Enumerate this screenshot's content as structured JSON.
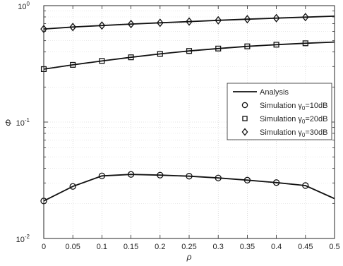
{
  "chart_data": {
    "type": "line",
    "title": "",
    "xlabel": "ρ",
    "ylabel": "Φ",
    "xlim": [
      0,
      0.5
    ],
    "ylim": [
      0.01,
      1
    ],
    "yscale": "log",
    "grid": true,
    "x_ticks": [
      "0",
      "0.05",
      "0.1",
      "0.15",
      "0.2",
      "0.25",
      "0.3",
      "0.35",
      "0.4",
      "0.45",
      "0.5"
    ],
    "y_ticks": [
      {
        "base": "10",
        "exp": "-2"
      },
      {
        "base": "10",
        "exp": "-1"
      },
      {
        "base": "10",
        "exp": "0"
      }
    ],
    "legend": {
      "position": "center-right",
      "entries": [
        {
          "label": "Analysis",
          "marker": "line"
        },
        {
          "label": {
            "prefix": "Simulation ",
            "sym": "γ",
            "sub": "0",
            "suffix": "=10dB"
          },
          "marker": "circle"
        },
        {
          "label": {
            "prefix": "Simulation ",
            "sym": "γ",
            "sub": "0",
            "suffix": "=20dB"
          },
          "marker": "square"
        },
        {
          "label": {
            "prefix": "Simulation ",
            "sym": "γ",
            "sub": "0",
            "suffix": "=30dB"
          },
          "marker": "diamond"
        }
      ]
    },
    "series": [
      {
        "marker": "circle",
        "x": [
          0,
          0.05,
          0.1,
          0.15,
          0.2,
          0.25,
          0.3,
          0.35,
          0.4,
          0.45,
          0.5
        ],
        "analysis": [
          0.021,
          0.028,
          0.0345,
          0.0355,
          0.035,
          0.0343,
          0.0331,
          0.0317,
          0.0302,
          0.0285,
          0.022
        ],
        "simulation_x": [
          0,
          0.05,
          0.1,
          0.15,
          0.2,
          0.25,
          0.3,
          0.35,
          0.4,
          0.45
        ],
        "simulation": [
          0.021,
          0.028,
          0.0345,
          0.0355,
          0.035,
          0.0343,
          0.0331,
          0.0317,
          0.0302,
          0.0285
        ]
      },
      {
        "marker": "square",
        "x": [
          0,
          0.05,
          0.1,
          0.15,
          0.2,
          0.25,
          0.3,
          0.35,
          0.4,
          0.45,
          0.5
        ],
        "analysis": [
          0.285,
          0.31,
          0.335,
          0.36,
          0.385,
          0.408,
          0.428,
          0.447,
          0.462,
          0.475,
          0.487
        ],
        "simulation_x": [
          0,
          0.05,
          0.1,
          0.15,
          0.2,
          0.25,
          0.3,
          0.35,
          0.4,
          0.45
        ],
        "simulation": [
          0.285,
          0.31,
          0.335,
          0.36,
          0.385,
          0.408,
          0.428,
          0.447,
          0.462,
          0.475
        ]
      },
      {
        "marker": "diamond",
        "x": [
          0,
          0.05,
          0.1,
          0.15,
          0.2,
          0.25,
          0.3,
          0.35,
          0.4,
          0.45,
          0.5
        ],
        "analysis": [
          0.63,
          0.655,
          0.675,
          0.695,
          0.712,
          0.73,
          0.748,
          0.765,
          0.781,
          0.797,
          0.812
        ],
        "simulation_x": [
          0,
          0.05,
          0.1,
          0.15,
          0.2,
          0.25,
          0.3,
          0.35,
          0.4,
          0.45
        ],
        "simulation": [
          0.63,
          0.655,
          0.675,
          0.695,
          0.712,
          0.73,
          0.748,
          0.765,
          0.781,
          0.797
        ]
      }
    ]
  }
}
